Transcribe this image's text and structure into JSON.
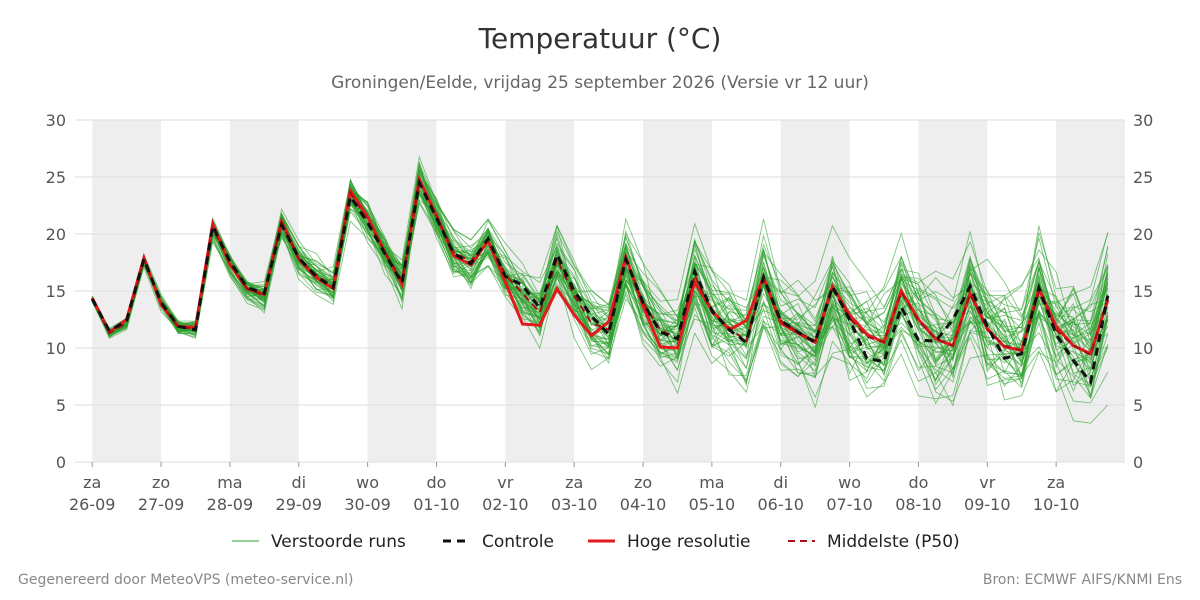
{
  "header": {
    "title": "Temperatuur (°C)",
    "subtitle": "Groningen/Eelde, vrijdag 25 september 2026 (Versie vr 12 uur)"
  },
  "footer": {
    "left": "Gegenereerd door MeteoVPS (meteo-service.nl)",
    "right": "Bron: ECMWF AIFS/KNMI Ens"
  },
  "colors": {
    "ensemble": "#2ca02c",
    "control": "#111111",
    "hires": "#e31a1c",
    "median": "#a50f15",
    "band": "#eeeeee",
    "grid": "#dddddd"
  },
  "chart_data": {
    "type": "line",
    "ylim": [
      0,
      30
    ],
    "yticks": [
      0,
      5,
      10,
      15,
      20,
      25,
      30
    ],
    "xlim_days": [
      -0.25,
      15.0
    ],
    "x_step_days": 0.25,
    "x_start": "2026-09-25 18:00",
    "grid": true,
    "legend_position": "bottom",
    "day_ticks": [
      {
        "day": "za",
        "date": "26-09"
      },
      {
        "day": "zo",
        "date": "27-09"
      },
      {
        "day": "ma",
        "date": "28-09"
      },
      {
        "day": "di",
        "date": "29-09"
      },
      {
        "day": "wo",
        "date": "30-09"
      },
      {
        "day": "do",
        "date": "01-10"
      },
      {
        "day": "vr",
        "date": "02-10"
      },
      {
        "day": "za",
        "date": "03-10"
      },
      {
        "day": "zo",
        "date": "04-10"
      },
      {
        "day": "ma",
        "date": "05-10"
      },
      {
        "day": "di",
        "date": "06-10"
      },
      {
        "day": "wo",
        "date": "07-10"
      },
      {
        "day": "do",
        "date": "08-10"
      },
      {
        "day": "vr",
        "date": "09-10"
      },
      {
        "day": "za",
        "date": "10-10"
      }
    ],
    "shaded_days_from": [
      "2026-09-26",
      "2026-09-28",
      "2026-09-30",
      "2026-10-02",
      "2026-10-04",
      "2026-10-06",
      "2026-10-08",
      "2026-10-10"
    ],
    "series": [
      {
        "name": "Verstoorde runs",
        "style": "thin-green",
        "ensemble_members": 50
      },
      {
        "name": "Controle",
        "style": "black-dashed",
        "values": [
          14.3,
          11.5,
          12.4,
          17.8,
          14.0,
          11.9,
          11.6,
          20.7,
          17.6,
          15.3,
          14.8,
          20.8,
          17.9,
          16.3,
          15.3,
          23.3,
          21.0,
          18.3,
          15.7,
          24.5,
          21.4,
          18.3,
          17.4,
          19.6,
          16.3,
          15.5,
          13.5,
          18.2,
          15.0,
          12.8,
          11.2,
          17.8,
          14.0,
          11.4,
          10.8,
          16.7,
          13.3,
          11.6,
          10.5,
          16.2,
          12.4,
          11.4,
          10.5,
          15.4,
          12.5,
          9.1,
          8.8,
          13.6,
          10.7,
          10.6,
          12.5,
          15.4,
          11.9,
          9.1,
          9.5,
          15.3,
          11.2,
          8.9,
          7.0,
          14.6
        ]
      },
      {
        "name": "Hoge resolutie",
        "style": "red-solid",
        "values": [
          14.4,
          11.4,
          12.5,
          17.9,
          13.8,
          11.9,
          11.8,
          20.9,
          17.3,
          15.2,
          14.7,
          21.1,
          17.8,
          16.2,
          15.2,
          23.8,
          21.5,
          18.4,
          15.6,
          24.8,
          21.6,
          18.1,
          17.3,
          19.4,
          15.8,
          12.1,
          12.0,
          15.2,
          12.9,
          11.1,
          12.3,
          18.0,
          13.7,
          10.1,
          10.0,
          15.8,
          13.3,
          11.6,
          12.4,
          16.2,
          12.2,
          11.3,
          10.5,
          15.4,
          12.9,
          11.2,
          10.5,
          15.0,
          12.5,
          10.8,
          10.2,
          14.8,
          11.7,
          10.1,
          9.8,
          15.2,
          11.9,
          10.2,
          9.5,
          14.2
        ]
      },
      {
        "name": "Middelste (P50)",
        "style": "darkred-dashed",
        "values": [
          14.3,
          11.3,
          12.2,
          17.7,
          14.0,
          11.8,
          11.7,
          20.5,
          17.5,
          15.2,
          14.6,
          21.0,
          17.8,
          16.4,
          15.4,
          23.6,
          21.2,
          18.4,
          15.9,
          24.6,
          21.6,
          18.4,
          17.6,
          19.5,
          16.4,
          14.8,
          13.1,
          17.8,
          14.6,
          12.2,
          11.6,
          17.7,
          14.0,
          11.6,
          10.8,
          16.4,
          13.1,
          11.8,
          10.6,
          16.0,
          12.4,
          11.4,
          10.6,
          15.2,
          12.6,
          11.0,
          10.5,
          14.9,
          12.4,
          10.8,
          10.2,
          14.7,
          11.6,
          10.2,
          9.8,
          14.9,
          11.6,
          10.2,
          9.4,
          14.4
        ]
      }
    ]
  }
}
